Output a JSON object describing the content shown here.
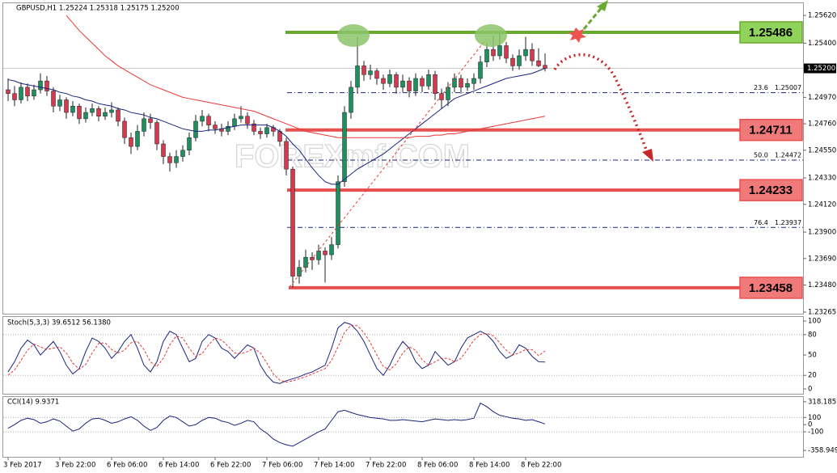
{
  "chart_data": [
    {
      "type": "candlestick",
      "title": "GBPUSD,H1  1.25224 1.25318 1.25175 1.25200",
      "watermark": "FOREXmf.COM",
      "categories": [
        "3 Feb 2017",
        null,
        null,
        null,
        null,
        null,
        null,
        null,
        "3 Feb 22:00",
        null,
        null,
        null,
        null,
        null,
        null,
        null,
        "6 Feb 06:00",
        null,
        null,
        null,
        null,
        null,
        null,
        null,
        "6 Feb 14:00",
        null,
        null,
        null,
        null,
        null,
        null,
        null,
        "6 Feb 22:00",
        null,
        null,
        null,
        null,
        null,
        null,
        null,
        "7 Feb 06:00",
        null,
        null,
        null,
        null,
        null,
        null,
        null,
        "7 Feb 14:00",
        null,
        null,
        null,
        null,
        null,
        null,
        null,
        "7 Feb 22:00",
        null,
        null,
        null,
        null,
        null,
        null,
        null,
        "8 Feb 06:00",
        null,
        null,
        null,
        null,
        null,
        null,
        null,
        "8 Feb 14:00",
        null,
        null,
        null,
        null,
        null,
        null,
        null,
        "8 Feb 22:00",
        null,
        null,
        null
      ],
      "candles": [
        [
          1.2503,
          1.2512,
          1.2494,
          1.25
        ],
        [
          1.25,
          1.2506,
          1.249,
          1.2495
        ],
        [
          1.2495,
          1.2509,
          1.2492,
          1.2505
        ],
        [
          1.2505,
          1.2508,
          1.2494,
          1.2498
        ],
        [
          1.2498,
          1.2507,
          1.2495,
          1.2503
        ],
        [
          1.2503,
          1.2516,
          1.25,
          1.251
        ],
        [
          1.251,
          1.2514,
          1.2498,
          1.2502
        ],
        [
          1.2502,
          1.2505,
          1.2485,
          1.249
        ],
        [
          1.249,
          1.2499,
          1.2486,
          1.2495
        ],
        [
          1.2495,
          1.2497,
          1.248,
          1.2485
        ],
        [
          1.2485,
          1.2494,
          1.2482,
          1.249
        ],
        [
          1.249,
          1.2492,
          1.2476,
          1.248
        ],
        [
          1.248,
          1.2489,
          1.2477,
          1.2485
        ],
        [
          1.2485,
          1.2492,
          1.2482,
          1.2488
        ],
        [
          1.2488,
          1.249,
          1.2478,
          1.2482
        ],
        [
          1.2482,
          1.2489,
          1.2479,
          1.2485
        ],
        [
          1.2485,
          1.2493,
          1.2481,
          1.2487
        ],
        [
          1.2487,
          1.2489,
          1.2474,
          1.2478
        ],
        [
          1.2478,
          1.2481,
          1.246,
          1.2465
        ],
        [
          1.2465,
          1.2469,
          1.2452,
          1.2458
        ],
        [
          1.2458,
          1.2475,
          1.2455,
          1.247
        ],
        [
          1.247,
          1.2485,
          1.2466,
          1.248
        ],
        [
          1.248,
          1.2484,
          1.2472,
          1.2477
        ],
        [
          1.2477,
          1.2479,
          1.2455,
          1.246
        ],
        [
          1.246,
          1.2463,
          1.2444,
          1.245
        ],
        [
          1.245,
          1.2453,
          1.2438,
          1.2445
        ],
        [
          1.2445,
          1.2455,
          1.2441,
          1.245
        ],
        [
          1.245,
          1.2459,
          1.2446,
          1.2455
        ],
        [
          1.2455,
          1.2469,
          1.2451,
          1.2465
        ],
        [
          1.2465,
          1.2483,
          1.2462,
          1.2478
        ],
        [
          1.2478,
          1.2487,
          1.2474,
          1.2482
        ],
        [
          1.2482,
          1.2484,
          1.247,
          1.2475
        ],
        [
          1.2475,
          1.2478,
          1.2468,
          1.2472
        ],
        [
          1.2472,
          1.2476,
          1.2466,
          1.247
        ],
        [
          1.247,
          1.2478,
          1.2467,
          1.2474
        ],
        [
          1.2474,
          1.2484,
          1.2471,
          1.248
        ],
        [
          1.248,
          1.249,
          1.2477,
          1.2482
        ],
        [
          1.2482,
          1.2485,
          1.2472,
          1.2476
        ],
        [
          1.2476,
          1.2479,
          1.2467,
          1.247
        ],
        [
          1.247,
          1.2473,
          1.2464,
          1.2468
        ],
        [
          1.2468,
          1.2476,
          1.2465,
          1.2473
        ],
        [
          1.2473,
          1.2475,
          1.2466,
          1.247
        ],
        [
          1.247,
          1.2472,
          1.2458,
          1.2462
        ],
        [
          1.2462,
          1.2465,
          1.2435,
          1.244
        ],
        [
          1.244,
          1.2442,
          1.2346,
          1.2355
        ],
        [
          1.2355,
          1.2368,
          1.2349,
          1.2362
        ],
        [
          1.2362,
          1.2376,
          1.2358,
          1.237
        ],
        [
          1.237,
          1.2374,
          1.236,
          1.2368
        ],
        [
          1.2368,
          1.238,
          1.2364,
          1.2375
        ],
        [
          1.2375,
          1.2378,
          1.235,
          1.2372
        ],
        [
          1.2372,
          1.2386,
          1.2368,
          1.238
        ],
        [
          1.238,
          1.2435,
          1.2377,
          1.243
        ],
        [
          1.243,
          1.249,
          1.2426,
          1.2485
        ],
        [
          1.2485,
          1.251,
          1.248,
          1.2505
        ],
        [
          1.2505,
          1.2545,
          1.25,
          1.2522
        ],
        [
          1.2522,
          1.2526,
          1.251,
          1.2515
        ],
        [
          1.2515,
          1.2523,
          1.2511,
          1.2518
        ],
        [
          1.2518,
          1.252,
          1.2507,
          1.2512
        ],
        [
          1.2512,
          1.2515,
          1.2503,
          1.2508
        ],
        [
          1.2508,
          1.2519,
          1.2505,
          1.2515
        ],
        [
          1.2515,
          1.2517,
          1.25,
          1.2505
        ],
        [
          1.2505,
          1.2515,
          1.2501,
          1.251
        ],
        [
          1.251,
          1.2513,
          1.2497,
          1.2502
        ],
        [
          1.2502,
          1.2516,
          1.2498,
          1.2512
        ],
        [
          1.2512,
          1.2514,
          1.2501,
          1.2506
        ],
        [
          1.2506,
          1.2519,
          1.2503,
          1.2515
        ],
        [
          1.2515,
          1.2518,
          1.2495,
          1.25
        ],
        [
          1.25,
          1.2504,
          1.2488,
          1.2495
        ],
        [
          1.2495,
          1.2509,
          1.249,
          1.2505
        ],
        [
          1.2505,
          1.2516,
          1.2501,
          1.2512
        ],
        [
          1.2512,
          1.2515,
          1.25,
          1.2505
        ],
        [
          1.2505,
          1.2512,
          1.2502,
          1.2508
        ],
        [
          1.2508,
          1.2516,
          1.2503,
          1.2512
        ],
        [
          1.2512,
          1.253,
          1.2508,
          1.2525
        ],
        [
          1.2525,
          1.254,
          1.2521,
          1.2535
        ],
        [
          1.2535,
          1.2546,
          1.2526,
          1.253
        ],
        [
          1.253,
          1.2548,
          1.2527,
          1.2538
        ],
        [
          1.2538,
          1.2541,
          1.2524,
          1.2528
        ],
        [
          1.2528,
          1.2531,
          1.2518,
          1.2522
        ],
        [
          1.2522,
          1.2535,
          1.2519,
          1.253
        ],
        [
          1.253,
          1.2545,
          1.2526,
          1.2535
        ],
        [
          1.2535,
          1.254,
          1.2522,
          1.2526
        ],
        [
          1.2526,
          1.2536,
          1.2521,
          1.2522
        ],
        [
          1.25224,
          1.25318,
          1.25175,
          1.252
        ]
      ],
      "up_color": "#1f8f5f",
      "down_color": "#d23a50",
      "series": [
        {
          "color": "#1a237e",
          "values": [
            1.2511,
            1.251,
            1.2508,
            1.2507,
            1.2506,
            1.2505,
            1.2504,
            1.2503,
            1.2501,
            1.25,
            1.2498,
            1.2497,
            1.2495,
            1.2494,
            1.2492,
            1.2491,
            1.249,
            1.2488,
            1.2487,
            1.2485,
            1.2484,
            1.2483,
            1.2481,
            1.248,
            1.2478,
            1.2476,
            1.2474,
            1.2472,
            1.2471,
            1.247,
            1.247,
            1.2471,
            1.2471,
            1.2472,
            1.2473,
            1.2474,
            1.2475,
            1.2475,
            1.2475,
            1.2475,
            1.2475,
            1.2473,
            1.247,
            1.2466,
            1.246,
            1.2455,
            1.2448,
            1.2441,
            1.2435,
            1.243,
            1.2428,
            1.2428,
            1.2432,
            1.2436,
            1.244,
            1.2443,
            1.2446,
            1.2449,
            1.2452,
            1.2456,
            1.246,
            1.2464,
            1.2468,
            1.2472,
            1.2476,
            1.248,
            1.2484,
            1.2488,
            1.2492,
            1.2496,
            1.2498,
            1.25,
            1.2502,
            1.2504,
            1.2506,
            1.2508,
            1.251,
            1.2512,
            1.2513,
            1.2514,
            1.2515,
            1.2516,
            1.2518,
            1.252
          ]
        },
        {
          "color": "#e53935",
          "values": [
            null,
            null,
            null,
            null,
            null,
            null,
            null,
            null,
            null,
            1.2562,
            1.2556,
            1.255,
            1.2545,
            1.254,
            1.2535,
            1.253,
            1.2526,
            1.2522,
            1.2519,
            1.2516,
            1.2513,
            1.251,
            1.2507,
            1.2505,
            1.2503,
            1.2501,
            1.2499,
            1.2497,
            1.2496,
            1.2495,
            1.2494,
            1.2493,
            1.2492,
            1.2491,
            1.249,
            1.2489,
            1.2488,
            1.2487,
            1.2486,
            1.2484,
            1.2482,
            1.248,
            1.2478,
            1.2476,
            1.2474,
            1.2472,
            1.247,
            1.2469,
            1.2468,
            1.2467,
            1.2466,
            1.2465,
            1.2465,
            1.2465,
            1.2465,
            1.2465,
            1.2465,
            1.2465,
            1.2465,
            1.2465,
            1.2465,
            1.2465,
            1.2465,
            1.2466,
            1.2466,
            1.2466,
            1.2467,
            1.2467,
            1.2468,
            1.2468,
            1.2469,
            1.247,
            1.2471,
            1.2472,
            1.2473,
            1.2474,
            1.2475,
            1.2476,
            1.2477,
            1.2478,
            1.2479,
            1.248,
            1.2481,
            1.2482
          ]
        }
      ],
      "levels": [
        {
          "value": 1.25486,
          "color": "#6aaa30",
          "fill": "#8fd35a"
        },
        {
          "value": 1.24711,
          "color": "#e8504f",
          "fill": "#f07a7a"
        },
        {
          "value": 1.24233,
          "color": "#e8504f",
          "fill": "#f07a7a"
        },
        {
          "value": 1.23458,
          "color": "#e8504f",
          "fill": "#f07a7a"
        }
      ],
      "fibonacci": [
        {
          "ratio": 23.6,
          "price": 1.25007
        },
        {
          "ratio": {
            "value": 50,
            "label": "50.0"
          },
          "price": 1.24472
        },
        {
          "ratio": 76.4,
          "price": 1.23937
        }
      ],
      "current_price": {
        "value": 1.252,
        "label": "1.25200"
      },
      "ylim": [
        1.23252,
        1.25717
      ],
      "yticks": [
        {
          "value": 1.2562,
          "label": "1.25620"
        },
        {
          "value": 1.254,
          "label": "1.25400"
        },
        {
          "value": 1.2497,
          "label": "1.24970"
        },
        {
          "value": 1.2476,
          "label": "1.24760"
        },
        {
          "value": 1.2455,
          "label": "1.24550"
        },
        {
          "value": 1.2433,
          "label": "1.24330"
        },
        {
          "value": 1.2412,
          "label": "1.24120"
        },
        {
          "value": 1.239,
          "label": "1.23900"
        },
        {
          "value": 1.2369,
          "label": "1.23690"
        },
        {
          "value": 1.2348,
          "label": "1.23480"
        },
        1.23265
      ]
    },
    {
      "type": "line",
      "title": "Stoch(5,3,3) 39.6512 56.1380",
      "series": [
        {
          "color": "#1a237e",
          "dash": false,
          "values": [
            25,
            40,
            60,
            72,
            65,
            50,
            60,
            70,
            55,
            35,
            22,
            30,
            55,
            75,
            70,
            60,
            45,
            55,
            70,
            80,
            60,
            35,
            25,
            40,
            70,
            85,
            80,
            60,
            40,
            45,
            70,
            80,
            75,
            60,
            55,
            45,
            55,
            65,
            60,
            35,
            20,
            10,
            8,
            12,
            15,
            18,
            22,
            25,
            30,
            35,
            60,
            90,
            98,
            95,
            85,
            70,
            50,
            30,
            20,
            35,
            55,
            70,
            60,
            40,
            30,
            35,
            55,
            45,
            35,
            40,
            60,
            75,
            80,
            85,
            80,
            70,
            55,
            45,
            50,
            65,
            60,
            48,
            40,
            39.6512
          ]
        },
        {
          "color": "#e53935",
          "dash": true,
          "values": [
            20,
            28,
            42,
            57,
            66,
            62,
            58,
            60,
            62,
            53,
            38,
            29,
            36,
            53,
            67,
            68,
            58,
            53,
            57,
            68,
            70,
            58,
            40,
            33,
            45,
            65,
            78,
            75,
            60,
            48,
            52,
            65,
            75,
            72,
            63,
            53,
            52,
            55,
            60,
            53,
            38,
            22,
            13,
            10,
            12,
            15,
            18,
            22,
            26,
            30,
            42,
            62,
            83,
            94,
            93,
            83,
            68,
            50,
            33,
            28,
            37,
            53,
            62,
            57,
            43,
            35,
            40,
            45,
            45,
            40,
            45,
            58,
            72,
            80,
            82,
            78,
            68,
            57,
            50,
            53,
            58,
            58,
            49,
            56.138
          ]
        }
      ],
      "level_lines": [
        80,
        20
      ],
      "ylim": [
        -7.1,
        106
      ],
      "yticks": [
        100,
        80,
        50,
        20,
        0
      ]
    },
    {
      "type": "line",
      "title": "CCI(14) 9.9371",
      "series": [
        {
          "color": "#1a237e",
          "dash": false,
          "values": [
            -50,
            0,
            60,
            90,
            70,
            20,
            40,
            80,
            50,
            -20,
            -90,
            -60,
            20,
            80,
            90,
            60,
            20,
            40,
            80,
            110,
            60,
            -20,
            -80,
            -40,
            60,
            120,
            100,
            40,
            -20,
            0,
            60,
            100,
            90,
            50,
            30,
            -10,
            20,
            60,
            40,
            -60,
            -120,
            -200,
            -250,
            -280,
            -300,
            -250,
            -200,
            -150,
            -100,
            -60,
            60,
            180,
            200,
            170,
            140,
            120,
            100,
            90,
            80,
            60,
            60,
            70,
            60,
            50,
            40,
            60,
            80,
            70,
            60,
            70,
            60,
            70,
            90,
            300,
            250,
            180,
            130,
            110,
            90,
            80,
            60,
            70,
            40,
            9.9371
          ]
        }
      ],
      "level_lines": [
        100,
        -100
      ],
      "ylim": [
        -447.7,
        384.8
      ],
      "yticks": [
        318.1852,
        100,
        0,
        -100,
        -358.949
      ]
    }
  ]
}
